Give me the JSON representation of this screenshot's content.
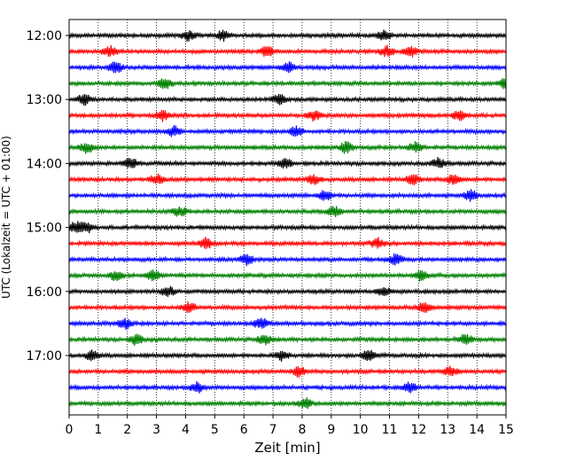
{
  "chart_data": {
    "type": "line",
    "title": "",
    "xlabel": "Zeit  [min]",
    "ylabel": "UTC (Lokalzeit = UTC + 01:00)",
    "xlim": [
      0,
      15
    ],
    "x_ticks": [
      0,
      1,
      2,
      3,
      4,
      5,
      6,
      7,
      8,
      9,
      10,
      11,
      12,
      13,
      14,
      15
    ],
    "x_tick_labels": [
      "0",
      "1",
      "2",
      "3",
      "4",
      "5",
      "6",
      "7",
      "8",
      "9",
      "10",
      "11",
      "12",
      "13",
      "14",
      "15"
    ],
    "y_tick_labels": [
      "12:00",
      "13:00",
      "14:00",
      "15:00",
      "16:00",
      "17:00"
    ],
    "grid": "vertical dotted",
    "trace_interval_minutes": 15,
    "colors": [
      "#000000",
      "#ff0000",
      "#0000ff",
      "#008000"
    ],
    "traces": [
      {
        "start": "12:00",
        "color": "#000000",
        "events_min": [
          4.1,
          5.3,
          10.8
        ]
      },
      {
        "start": "12:15",
        "color": "#ff0000",
        "events_min": [
          1.4,
          6.8,
          10.9,
          11.7
        ]
      },
      {
        "start": "12:30",
        "color": "#0000ff",
        "events_min": [
          1.6,
          7.5
        ]
      },
      {
        "start": "12:45",
        "color": "#008000",
        "events_min": [
          3.3,
          15.0
        ]
      },
      {
        "start": "13:00",
        "color": "#000000",
        "events_min": [
          0.5,
          7.2
        ]
      },
      {
        "start": "13:15",
        "color": "#ff0000",
        "events_min": [
          3.2,
          8.4,
          13.4
        ]
      },
      {
        "start": "13:30",
        "color": "#0000ff",
        "events_min": [
          3.6,
          7.8
        ]
      },
      {
        "start": "13:45",
        "color": "#008000",
        "events_min": [
          0.6,
          9.5,
          11.9
        ]
      },
      {
        "start": "14:00",
        "color": "#000000",
        "events_min": [
          2.1,
          7.4,
          12.7
        ]
      },
      {
        "start": "14:15",
        "color": "#ff0000",
        "events_min": [
          3.0,
          8.4,
          11.8,
          13.2
        ]
      },
      {
        "start": "14:30",
        "color": "#0000ff",
        "events_min": [
          8.8,
          13.8
        ]
      },
      {
        "start": "14:45",
        "color": "#008000",
        "events_min": [
          3.8,
          9.1
        ]
      },
      {
        "start": "15:00",
        "color": "#000000",
        "events_min": [
          0.2,
          0.6
        ]
      },
      {
        "start": "15:15",
        "color": "#ff0000",
        "events_min": [
          4.7,
          10.6
        ]
      },
      {
        "start": "15:30",
        "color": "#0000ff",
        "events_min": [
          6.1,
          11.2
        ]
      },
      {
        "start": "15:45",
        "color": "#008000",
        "events_min": [
          1.6,
          2.9,
          12.1
        ]
      },
      {
        "start": "16:00",
        "color": "#000000",
        "events_min": [
          3.4,
          10.8
        ]
      },
      {
        "start": "16:15",
        "color": "#ff0000",
        "events_min": [
          4.1,
          12.2
        ]
      },
      {
        "start": "16:30",
        "color": "#0000ff",
        "events_min": [
          1.9,
          6.6
        ]
      },
      {
        "start": "16:45",
        "color": "#008000",
        "events_min": [
          2.3,
          6.7,
          13.6
        ]
      },
      {
        "start": "17:00",
        "color": "#000000",
        "events_min": [
          0.8,
          7.3,
          10.3
        ]
      },
      {
        "start": "17:15",
        "color": "#ff0000",
        "events_min": [
          7.9,
          13.1
        ]
      },
      {
        "start": "17:30",
        "color": "#0000ff",
        "events_min": [
          4.4,
          11.7
        ]
      },
      {
        "start": "17:45",
        "color": "#008000",
        "events_min": [
          8.1
        ]
      }
    ]
  }
}
